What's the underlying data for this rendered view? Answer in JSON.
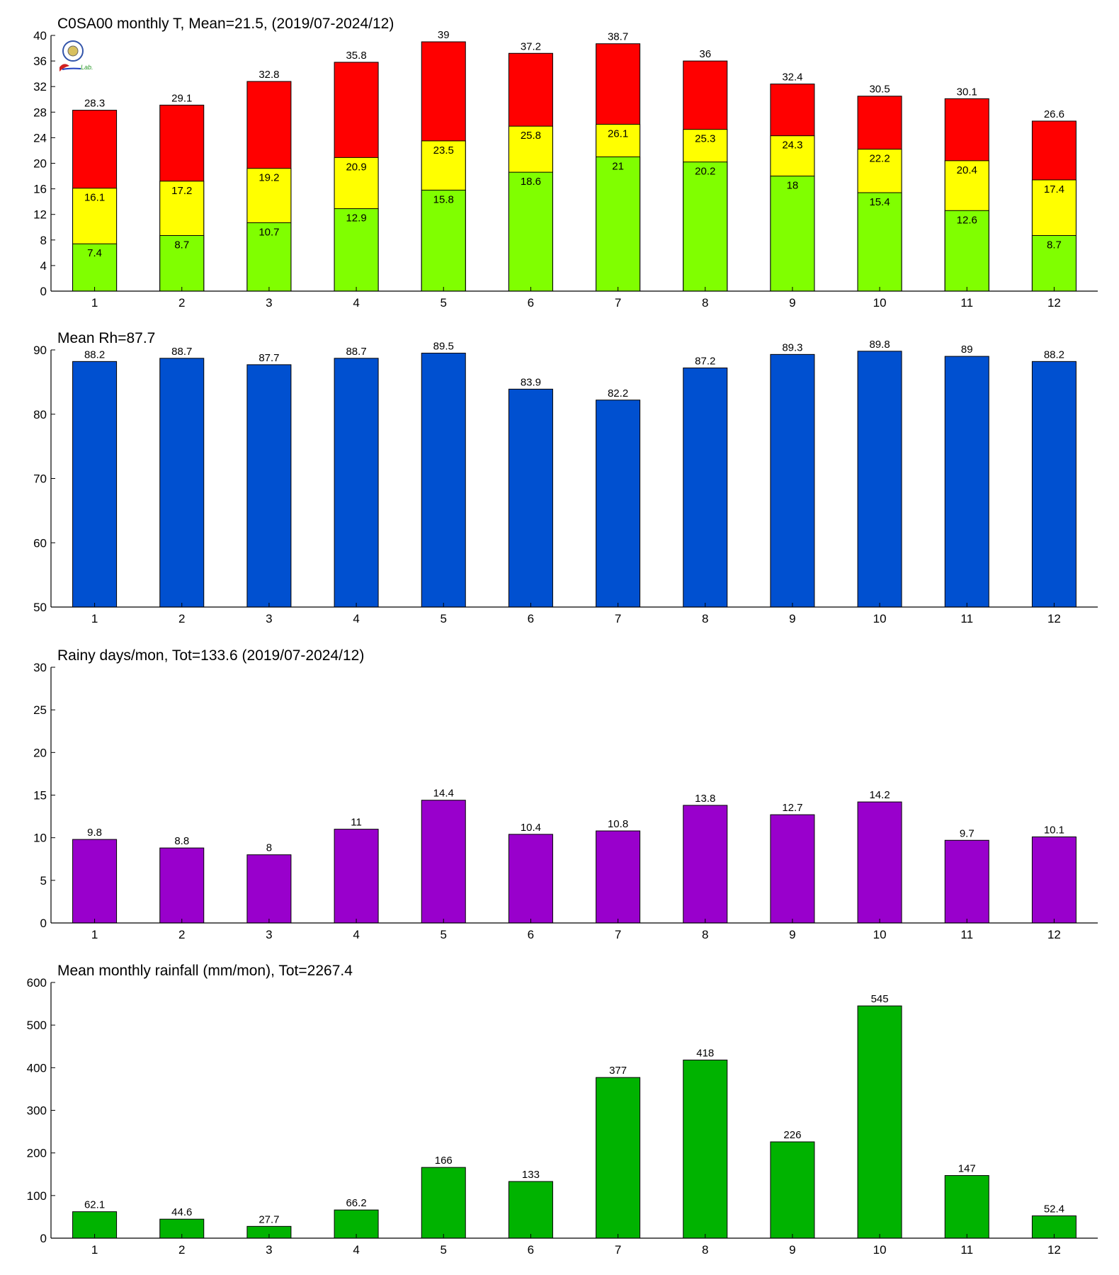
{
  "chart_data": [
    {
      "type": "bar",
      "title": "C0SA00 monthly T, Mean=21.5, (2019/07-2024/12)",
      "categories": [
        "1",
        "2",
        "3",
        "4",
        "5",
        "6",
        "7",
        "8",
        "9",
        "10",
        "11",
        "12"
      ],
      "ylim": [
        0,
        40
      ],
      "yticks": [
        0,
        4,
        8,
        12,
        16,
        20,
        24,
        28,
        32,
        36,
        40
      ],
      "stacked_levels": true,
      "label_colors": [
        "#000000",
        "#000000",
        "#000000"
      ],
      "logo": {
        "caption": "Lab."
      },
      "series": [
        {
          "values": [
            7.4,
            8.7,
            10.7,
            12.9,
            15.8,
            18.6,
            21,
            20.2,
            18,
            15.4,
            12.6,
            8.7
          ],
          "color": "#80ff00"
        },
        {
          "values": [
            16.1,
            17.2,
            19.2,
            20.9,
            23.5,
            25.8,
            26.1,
            25.3,
            24.3,
            22.2,
            20.4,
            17.4
          ],
          "color": "#ffff00"
        },
        {
          "values": [
            28.3,
            29.1,
            32.8,
            35.8,
            39,
            37.2,
            38.7,
            36,
            32.4,
            30.5,
            30.1,
            26.6
          ],
          "color": "#ff0000"
        }
      ]
    },
    {
      "type": "bar",
      "title": "Mean Rh=87.7",
      "categories": [
        "1",
        "2",
        "3",
        "4",
        "5",
        "6",
        "7",
        "8",
        "9",
        "10",
        "11",
        "12"
      ],
      "ylim": [
        50,
        90
      ],
      "yticks": [
        50,
        60,
        70,
        80,
        90
      ],
      "series": [
        {
          "values": [
            88.2,
            88.7,
            87.7,
            88.7,
            89.5,
            83.9,
            82.2,
            87.2,
            89.3,
            89.8,
            89,
            88.2
          ],
          "color": "#0050d0"
        }
      ]
    },
    {
      "type": "bar",
      "title": "Rainy days/mon, Tot=133.6 (2019/07-2024/12)",
      "categories": [
        "1",
        "2",
        "3",
        "4",
        "5",
        "6",
        "7",
        "8",
        "9",
        "10",
        "11",
        "12"
      ],
      "ylim": [
        0,
        30
      ],
      "yticks": [
        0,
        5,
        10,
        15,
        20,
        25,
        30
      ],
      "series": [
        {
          "values": [
            9.8,
            8.8,
            8,
            11,
            14.4,
            10.4,
            10.8,
            13.8,
            12.7,
            14.2,
            9.7,
            10.1
          ],
          "color": "#9900cc"
        }
      ]
    },
    {
      "type": "bar",
      "title": "Mean monthly rainfall (mm/mon), Tot=2267.4",
      "categories": [
        "1",
        "2",
        "3",
        "4",
        "5",
        "6",
        "7",
        "8",
        "9",
        "10",
        "11",
        "12"
      ],
      "ylim": [
        0,
        600
      ],
      "yticks": [
        0,
        100,
        200,
        300,
        400,
        500,
        600
      ],
      "series": [
        {
          "values": [
            62.1,
            44.6,
            27.7,
            66.2,
            166,
            133,
            377,
            418,
            226,
            545,
            147,
            52.4
          ],
          "color": "#00b300"
        }
      ]
    }
  ]
}
